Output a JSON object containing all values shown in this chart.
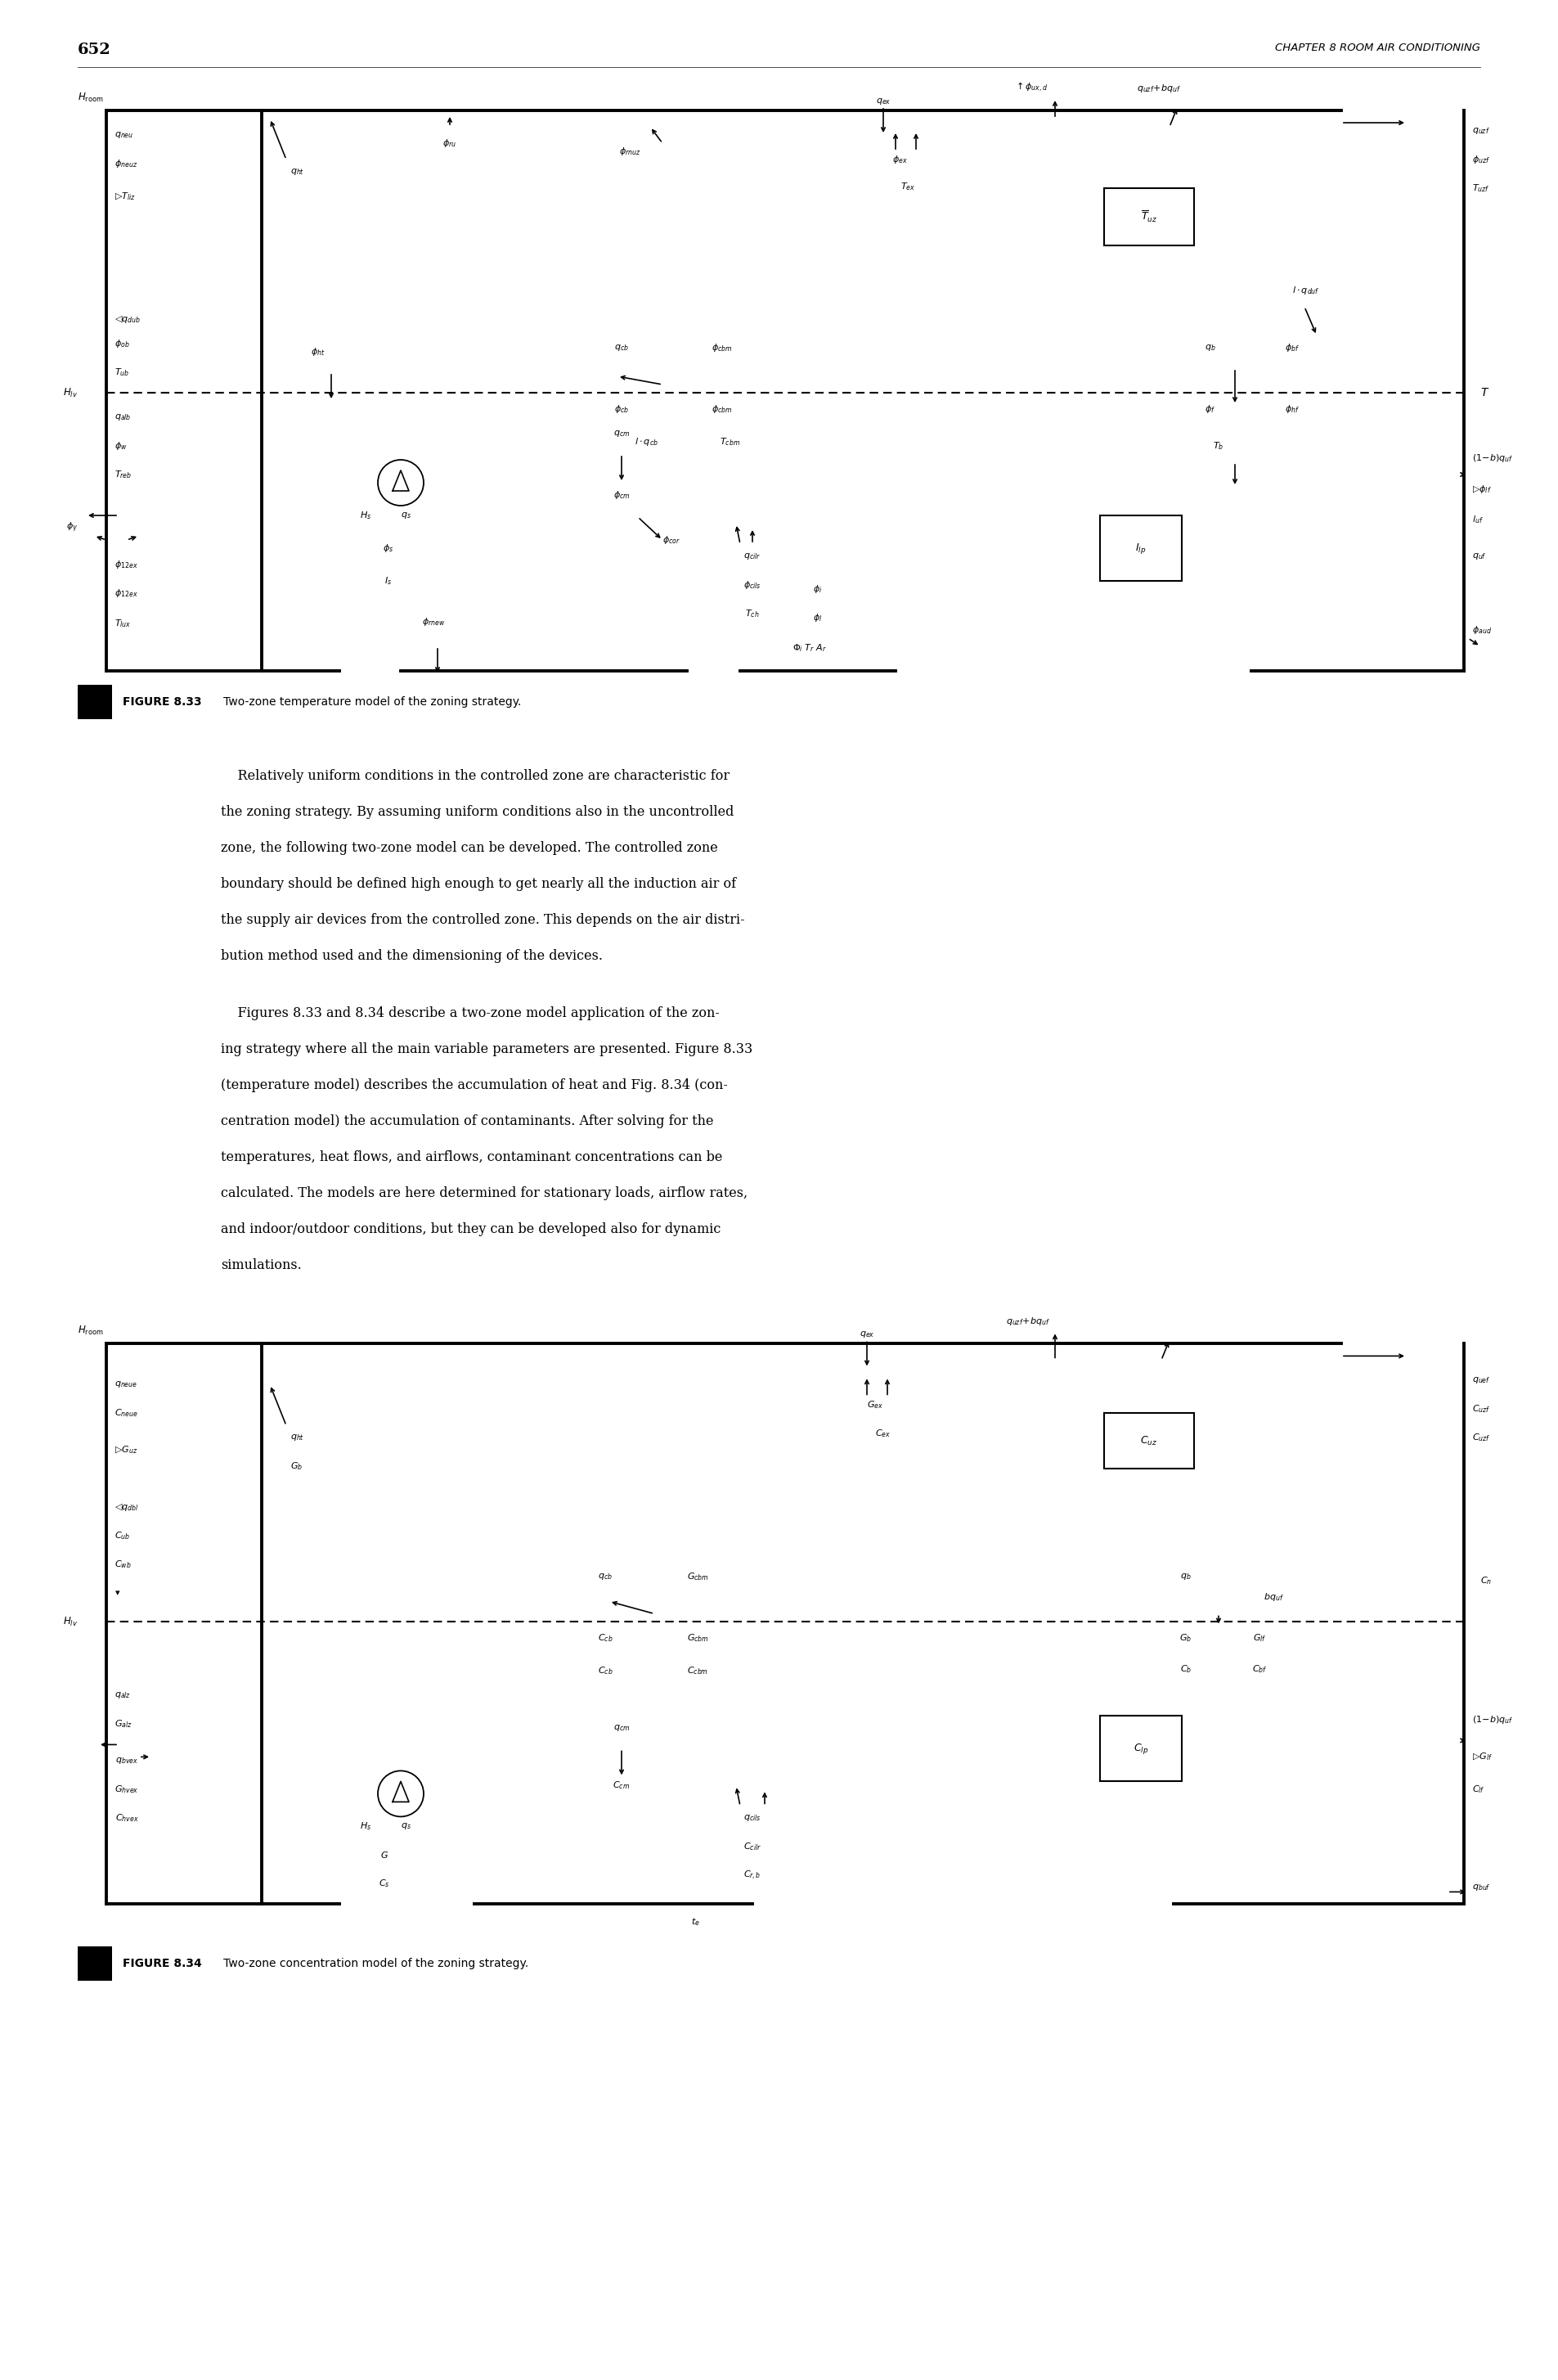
{
  "page_number": "652",
  "header_right": "CHAPTER 8 ROOM AIR CONDITIONING",
  "fig833_caption_bold": "FIGURE 8.33",
  "fig833_caption_normal": "   Two-zone temperature model of the zoning strategy.",
  "fig834_caption_bold": "FIGURE 8.34",
  "fig834_caption_normal": "   Two-zone concentration model of the zoning strategy.",
  "body_paragraphs": [
    [
      "    Relatively uniform conditions in the controlled zone are characteristic for",
      "the zoning strategy. By assuming uniform conditions also in the uncontrolled",
      "zone, the following two-zone model can be developed. The controlled zone",
      "boundary should be defined high enough to get nearly all the induction air of",
      "the supply air devices from the controlled zone. This depends on the air distri-",
      "bution method used and the dimensioning of the devices."
    ],
    [
      "    Figures 8.33 and 8.34 describe a two-zone model application of the zon-",
      "ing strategy where all the main variable parameters are presented. Figure 8.33",
      "(temperature model) describes the accumulation of heat and Fig. 8.34 (con-",
      "centration model) the accumulation of contaminants. After solving for the",
      "temperatures, heat flows, and airflows, contaminant concentrations can be",
      "calculated. The models are here determined for stationary loads, airflow rates,",
      "and indoor/outdoor conditions, but they can be developed also for dynamic",
      "simulations."
    ]
  ],
  "bg_color": "#ffffff"
}
